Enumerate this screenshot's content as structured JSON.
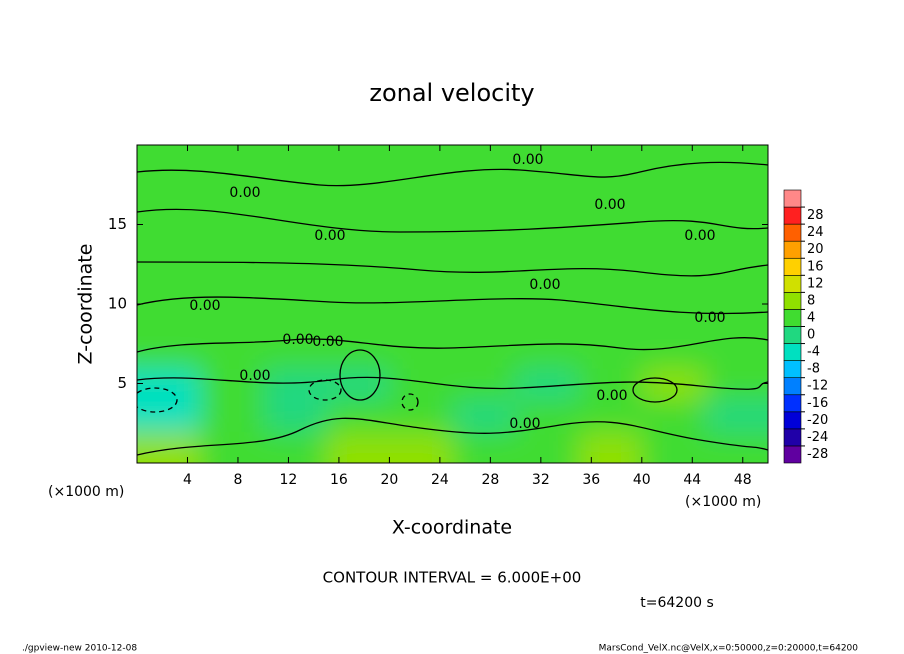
{
  "chart_data": {
    "type": "contour",
    "title": "zonal velocity",
    "x_label": "X-coordinate",
    "y_label": "Z-coordinate",
    "x_unit_left": "(×1000 m)",
    "x_unit_right": "(×1000 m)",
    "contour_interval": "CONTOUR INTERVAL = 6.000E+00",
    "time_label": "t=64200 s",
    "footer_left": "./gpview-new  2010-12-08",
    "footer_right": "MarsCond_VelX.nc@VelX,x=0:50000,z=0:20000,t=64200",
    "xlim": [
      0,
      50
    ],
    "ylim": [
      0,
      20
    ],
    "xticks": [
      4,
      8,
      12,
      16,
      20,
      24,
      28,
      32,
      36,
      40,
      44,
      48
    ],
    "yticks": [
      5,
      10,
      15
    ],
    "x": [
      2.5,
      7.5,
      12.5,
      17.5,
      22.5,
      27.5,
      32.5,
      37.5,
      42.5,
      47.5
    ],
    "z": [
      1,
      3,
      5,
      7,
      9,
      11,
      13,
      15,
      17,
      19
    ],
    "values": [
      [
        6,
        2,
        1,
        6,
        5,
        1,
        2,
        6,
        2,
        1
      ],
      [
        -6,
        1,
        -2,
        2,
        1,
        -1,
        1,
        2,
        3,
        -2
      ],
      [
        -5,
        2,
        -2,
        -1,
        1,
        2,
        -1,
        1,
        5,
        1
      ],
      [
        2,
        1,
        2,
        1,
        2,
        1,
        1,
        2,
        1,
        1
      ],
      [
        2,
        3,
        2,
        2,
        3,
        2,
        2,
        3,
        2,
        2
      ],
      [
        3,
        2,
        2,
        3,
        2,
        3,
        2,
        2,
        3,
        2
      ],
      [
        2,
        3,
        3,
        2,
        3,
        2,
        3,
        3,
        2,
        3
      ],
      [
        2,
        2,
        1,
        2,
        2,
        1,
        2,
        2,
        1,
        2
      ],
      [
        3,
        2,
        2,
        3,
        2,
        2,
        2,
        3,
        2,
        2
      ],
      [
        2,
        1,
        2,
        2,
        1,
        2,
        2,
        1,
        2,
        2
      ]
    ],
    "colorbar_ticks": [
      -28,
      -24,
      -20,
      -16,
      -12,
      -8,
      -4,
      0,
      4,
      8,
      12,
      16,
      20,
      24,
      28
    ],
    "colorbar_colors": [
      "#6000a0",
      "#2000a8",
      "#0000d8",
      "#0030ff",
      "#0080ff",
      "#00c0ff",
      "#00e0c0",
      "#20d880",
      "#40dc30",
      "#90e000",
      "#d0e000",
      "#ffd000",
      "#ffa000",
      "#ff6000",
      "#ff2020",
      "#ff8888"
    ],
    "contour_labels": [
      "0.00",
      "0.00",
      "0.00",
      "0.00",
      "0.00",
      "0.00",
      "0.00",
      "0.00",
      "0.00",
      "0.00",
      "0.00",
      "0.00",
      "0.00"
    ]
  }
}
